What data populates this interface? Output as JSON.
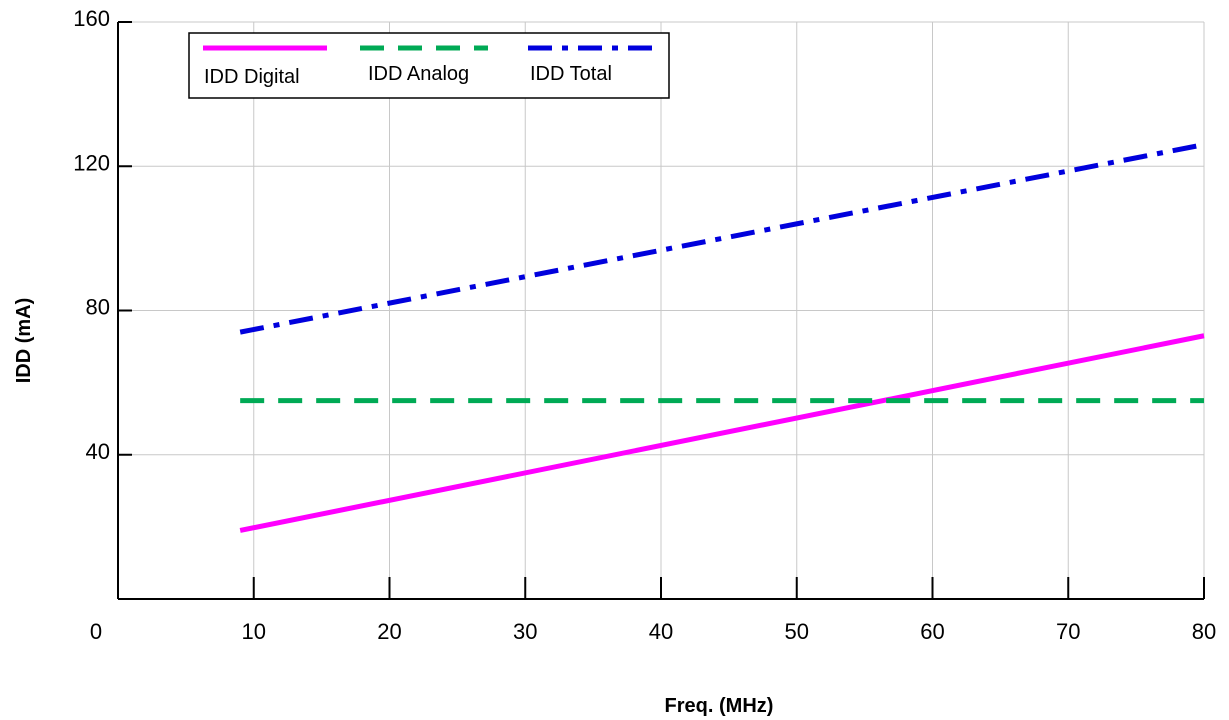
{
  "chart_data": {
    "type": "line",
    "title": "",
    "xlabel": "Freq. (MHz)",
    "ylabel": "IDD (mA)",
    "xlim": [
      0,
      80
    ],
    "ylim": [
      0,
      160
    ],
    "x_ticks": [
      10,
      20,
      30,
      40,
      50,
      60,
      70,
      80
    ],
    "y_ticks": [
      40,
      80,
      120,
      160
    ],
    "origin_label": "0",
    "grid": true,
    "legend_position": "top-left",
    "series": [
      {
        "name": "IDD Digital",
        "color": "#ff00ff",
        "dash": "solid",
        "x": [
          9,
          80
        ],
        "y": [
          19,
          73
        ]
      },
      {
        "name": "IDD Analog",
        "color": "#00aa55",
        "dash": "dashed",
        "x": [
          9,
          80
        ],
        "y": [
          55,
          55
        ]
      },
      {
        "name": "IDD Total",
        "color": "#0000dd",
        "dash": "dash-dot",
        "x": [
          9,
          80
        ],
        "y": [
          74,
          126
        ]
      }
    ]
  }
}
